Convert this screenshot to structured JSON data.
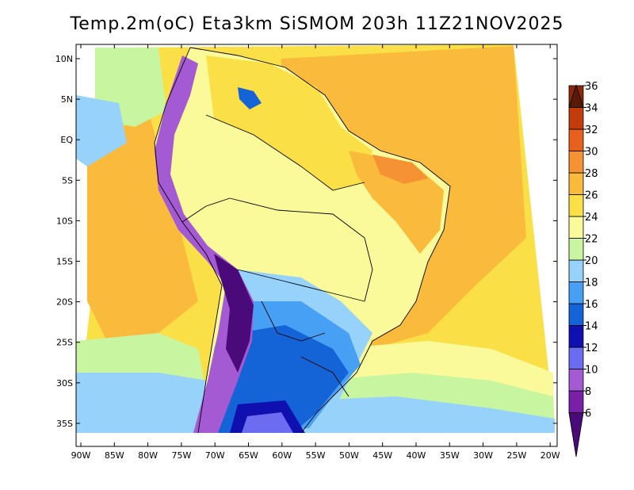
{
  "title": "Temp.2m(oC) Eta3km SiSMOM 203h 11Z21NOV2025",
  "lat_labels": [
    "10N",
    "5N",
    "EQ",
    "5S",
    "10S",
    "15S",
    "20S",
    "25S",
    "30S",
    "35S"
  ],
  "lon_labels": [
    "90W",
    "85W",
    "80W",
    "75W",
    "70W",
    "65W",
    "60W",
    "55W",
    "50W",
    "45W",
    "40W",
    "35W",
    "30W",
    "25W",
    "20W"
  ],
  "colorbar": {
    "labels": [
      "6",
      "8",
      "10",
      "12",
      "14",
      "16",
      "18",
      "20",
      "22",
      "24",
      "26",
      "28",
      "30",
      "32",
      "34",
      "36"
    ],
    "colors": [
      "#4a0a7a",
      "#7a1fa8",
      "#a45ad2",
      "#6c6cf0",
      "#1010b0",
      "#1464d8",
      "#48a0f4",
      "#96d2fa",
      "#c8f5a0",
      "#fafa9a",
      "#fae046",
      "#faba3c",
      "#f59234",
      "#e8601e",
      "#c23c0c",
      "#8c2808",
      "#5a1a08"
    ]
  }
}
